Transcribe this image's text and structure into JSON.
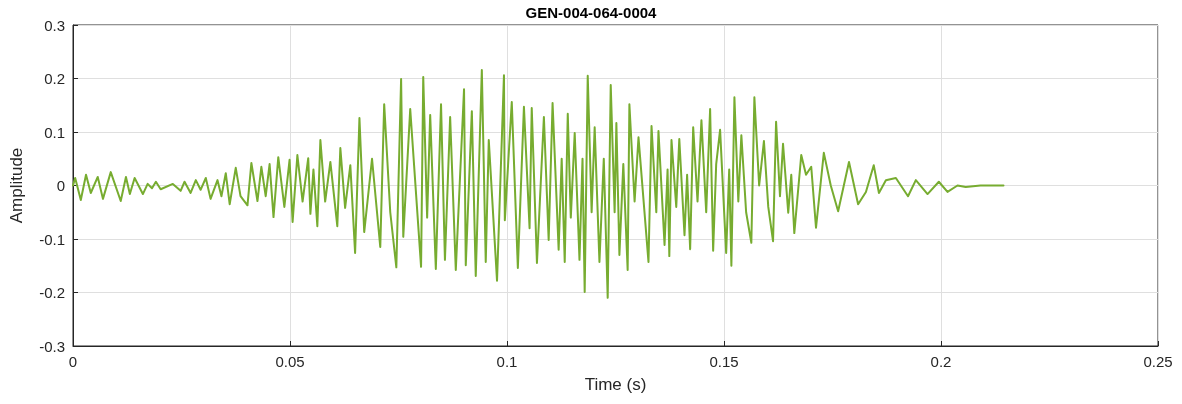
{
  "chart_data": {
    "type": "line",
    "title": "GEN-004-064-0004",
    "xlabel": "Time (s)",
    "ylabel": "Amplitude",
    "xlim": [
      0,
      0.25
    ],
    "xticks": [
      0,
      0.05,
      0.1,
      0.15,
      0.2,
      0.25
    ],
    "ylim": [
      -0.3,
      0.3
    ],
    "yticks": [
      -0.3,
      -0.2,
      -0.1,
      0,
      0.1,
      0.2,
      0.3
    ],
    "grid": true,
    "marker": "none",
    "line_style": "solid",
    "series": [
      {
        "color": "#77ac30",
        "x": [
          0,
          0.0005,
          0.0018,
          0.003,
          0.0041,
          0.0057,
          0.0069,
          0.0087,
          0.011,
          0.0122,
          0.0131,
          0.0142,
          0.0161,
          0.0172,
          0.0182,
          0.0191,
          0.0202,
          0.023,
          0.0248,
          0.0257,
          0.0271,
          0.0283,
          0.0294,
          0.0306,
          0.0317,
          0.0333,
          0.0342,
          0.0352,
          0.0361,
          0.0375,
          0.0386,
          0.0402,
          0.0411,
          0.0425,
          0.0434,
          0.0444,
          0.0453,
          0.0462,
          0.0473,
          0.0487,
          0.0499,
          0.0506,
          0.0517,
          0.0529,
          0.0542,
          0.0547,
          0.0554,
          0.0563,
          0.057,
          0.0581,
          0.0593,
          0.0609,
          0.0616,
          0.0627,
          0.0639,
          0.065,
          0.066,
          0.0671,
          0.0689,
          0.0708,
          0.0717,
          0.0731,
          0.0745,
          0.0756,
          0.0761,
          0.0777,
          0.0802,
          0.0807,
          0.0816,
          0.0823,
          0.0836,
          0.0848,
          0.0857,
          0.0869,
          0.0882,
          0.0901,
          0.0905,
          0.0919,
          0.0928,
          0.0942,
          0.0951,
          0.0958,
          0.0977,
          0.0993,
          0.0995,
          0.1011,
          0.1025,
          0.1039,
          0.1052,
          0.1057,
          0.1069,
          0.1085,
          0.1096,
          0.1105,
          0.1119,
          0.1126,
          0.1133,
          0.114,
          0.1147,
          0.1156,
          0.1167,
          0.1174,
          0.1179,
          0.1186,
          0.1195,
          0.1202,
          0.1213,
          0.1223,
          0.1232,
          0.1239,
          0.1248,
          0.1252,
          0.1259,
          0.1268,
          0.1278,
          0.1282,
          0.1294,
          0.1303,
          0.1326,
          0.1333,
          0.1344,
          0.1349,
          0.1363,
          0.137,
          0.1374,
          0.1379,
          0.139,
          0.1397,
          0.1409,
          0.1415,
          0.1422,
          0.1429,
          0.1439,
          0.1448,
          0.1459,
          0.1468,
          0.1475,
          0.1482,
          0.1491,
          0.1505,
          0.1512,
          0.1517,
          0.1524,
          0.1533,
          0.154,
          0.1551,
          0.1563,
          0.157,
          0.1581,
          0.1592,
          0.1602,
          0.1613,
          0.162,
          0.1629,
          0.1636,
          0.1648,
          0.1655,
          0.1662,
          0.1678,
          0.1689,
          0.1701,
          0.1712,
          0.173,
          0.1746,
          0.1763,
          0.1788,
          0.1809,
          0.1827,
          0.1845,
          0.1857,
          0.1873,
          0.1896,
          0.1924,
          0.1942,
          0.1969,
          0.1995,
          0.2015,
          0.2038,
          0.2057,
          0.2091,
          0.2144
        ],
        "values": [
          0,
          0.014,
          -0.027,
          0.02,
          -0.014,
          0.016,
          -0.025,
          0.025,
          -0.029,
          0.016,
          -0.016,
          0.014,
          -0.016,
          0.003,
          -0.005,
          0.007,
          -0.007,
          0.003,
          -0.01,
          0.007,
          -0.014,
          0.01,
          -0.008,
          0.014,
          -0.025,
          0.01,
          -0.02,
          0.023,
          -0.035,
          0.033,
          -0.02,
          -0.037,
          0.042,
          -0.029,
          0.035,
          -0.02,
          0.04,
          -0.059,
          0.053,
          -0.04,
          0.048,
          -0.068,
          0.057,
          -0.03,
          0.051,
          -0.053,
          0.03,
          -0.076,
          0.085,
          -0.03,
          0.044,
          -0.076,
          0.07,
          -0.042,
          0.038,
          -0.126,
          0.126,
          -0.087,
          0.05,
          -0.115,
          0.152,
          -0.05,
          -0.153,
          0.199,
          -0.096,
          0.143,
          -0.152,
          0.203,
          -0.06,
          0.132,
          -0.156,
          0.152,
          -0.139,
          0.128,
          -0.158,
          0.18,
          -0.149,
          0.139,
          -0.169,
          0.216,
          -0.143,
          0.085,
          -0.178,
          0.206,
          -0.065,
          0.156,
          -0.154,
          0.147,
          -0.08,
          0.145,
          -0.145,
          0.128,
          -0.102,
          0.154,
          -0.12,
          0.05,
          -0.143,
          0.134,
          -0.06,
          0.098,
          -0.139,
          0.05,
          -0.199,
          0.205,
          -0.05,
          0.109,
          -0.143,
          0.05,
          -0.21,
          0.188,
          -0.05,
          0.117,
          -0.13,
          0.04,
          -0.158,
          0.152,
          -0.03,
          0.09,
          -0.143,
          0.111,
          -0.05,
          0.102,
          -0.111,
          0.03,
          -0.132,
          0.085,
          -0.04,
          0.087,
          -0.093,
          0.02,
          -0.119,
          0.109,
          -0.03,
          0.122,
          -0.05,
          0.143,
          -0.122,
          0.04,
          0.104,
          -0.126,
          0.03,
          -0.15,
          0.165,
          -0.03,
          0.094,
          -0.05,
          -0.107,
          0.165,
          0,
          0.083,
          -0.04,
          -0.104,
          0.119,
          -0.02,
          0.078,
          -0.051,
          0.02,
          -0.089,
          0.057,
          0.02,
          0.035,
          -0.079,
          0.061,
          0,
          -0.048,
          0.044,
          -0.035,
          -0.012,
          0.038,
          -0.014,
          0.01,
          0.014,
          -0.02,
          0.01,
          -0.016,
          0.007,
          -0.012,
          0,
          -0.003,
          0,
          0
        ]
      }
    ]
  }
}
